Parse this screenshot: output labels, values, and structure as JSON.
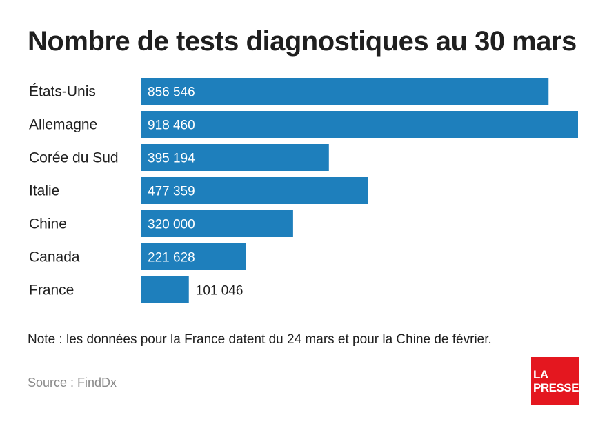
{
  "title": "Nombre de tests diagnostiques au 30 mars",
  "note": "Note : les données pour la France datent du 24 mars et pour la Chine de février.",
  "source": "Source : FindDx",
  "logo": {
    "line1": "LA",
    "line2": "PRESSE"
  },
  "colors": {
    "bar": "#1e7fbc",
    "logo": "#e4171f",
    "text": "#1f1f1f",
    "source": "#8a8a8a"
  },
  "chart_data": {
    "type": "bar",
    "orientation": "horizontal",
    "categories": [
      "États-Unis",
      "Allemagne",
      "Corée du Sud",
      "Italie",
      "Chine",
      "Canada",
      "France"
    ],
    "values": [
      856546,
      918460,
      395194,
      477359,
      320000,
      221628,
      101046
    ],
    "value_labels": [
      "856 546",
      "918 460",
      "395 194",
      "477 359",
      "320 000",
      "221 628",
      "101 046"
    ],
    "xlim": [
      0,
      918460
    ],
    "grid": false,
    "legend": "none"
  }
}
